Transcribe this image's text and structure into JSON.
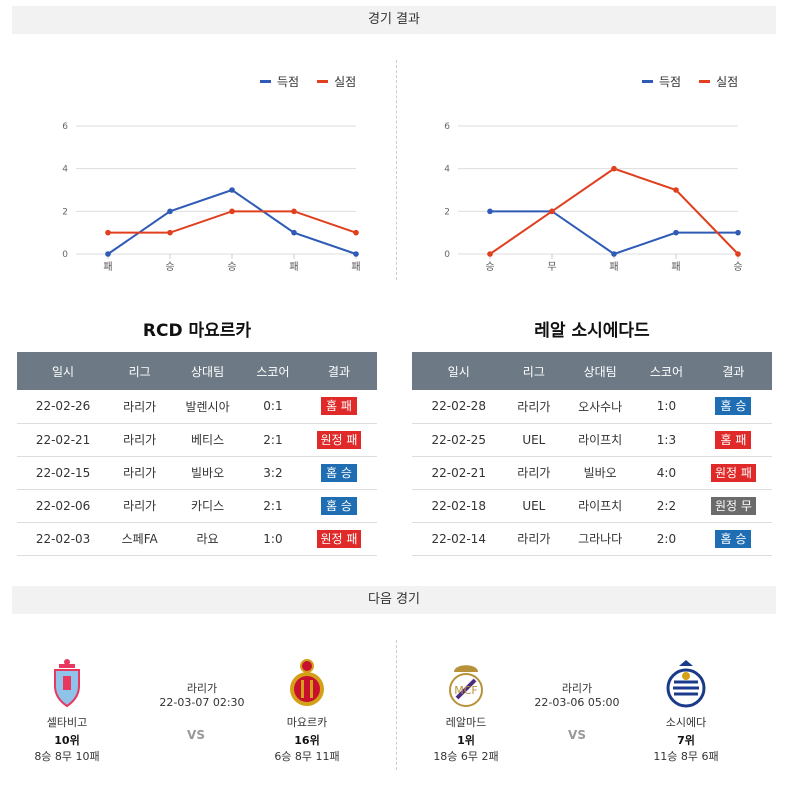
{
  "colors": {
    "scored": "#2f5bb7",
    "conceded": "#e0401f",
    "home_win": "#1f6db3",
    "loss": "#e02a2a",
    "draw": "#6b6b6b",
    "header": "#6d7a86"
  },
  "sections": {
    "results_title": "경기 결과",
    "next_title": "다음 경기"
  },
  "chart_data": [
    {
      "type": "line",
      "categories": [
        "패",
        "승",
        "승",
        "패",
        "패"
      ],
      "series": [
        {
          "name": "득점",
          "values": [
            0,
            2,
            3,
            1,
            0
          ]
        },
        {
          "name": "실점",
          "values": [
            1,
            1,
            2,
            2,
            1
          ]
        }
      ],
      "yticks": [
        "0",
        "2",
        "4",
        "6"
      ],
      "ylim": [
        0,
        6
      ],
      "grid": true,
      "legend": "top-right"
    },
    {
      "type": "line",
      "categories": [
        "승",
        "무",
        "패",
        "패",
        "승"
      ],
      "series": [
        {
          "name": "득점",
          "values": [
            2,
            2,
            0,
            1,
            1
          ]
        },
        {
          "name": "실점",
          "values": [
            0,
            2,
            4,
            3,
            0
          ]
        }
      ],
      "yticks": [
        "0",
        "2",
        "4",
        "6"
      ],
      "ylim": [
        0,
        6
      ],
      "grid": true,
      "legend": "top-right"
    }
  ],
  "left_team": {
    "title": "RCD 마요르카",
    "headers": [
      "일시",
      "리그",
      "상대팀",
      "스코어",
      "결과"
    ],
    "rows": [
      {
        "date": "22-02-26",
        "league": "라리가",
        "opponent": "발렌시아",
        "score": "0:1",
        "result": "홈 패",
        "kind": "loss"
      },
      {
        "date": "22-02-21",
        "league": "라리가",
        "opponent": "베티스",
        "score": "2:1",
        "result": "원정 패",
        "kind": "loss"
      },
      {
        "date": "22-02-15",
        "league": "라리가",
        "opponent": "빌바오",
        "score": "3:2",
        "result": "홈 승",
        "kind": "win"
      },
      {
        "date": "22-02-06",
        "league": "라리가",
        "opponent": "카디스",
        "score": "2:1",
        "result": "홈 승",
        "kind": "win"
      },
      {
        "date": "22-02-03",
        "league": "스페FA",
        "opponent": "라요",
        "score": "1:0",
        "result": "원정 패",
        "kind": "loss"
      }
    ]
  },
  "right_team": {
    "title": "레알 소시에다드",
    "headers": [
      "일시",
      "리그",
      "상대팀",
      "스코어",
      "결과"
    ],
    "rows": [
      {
        "date": "22-02-28",
        "league": "라리가",
        "opponent": "오사수나",
        "score": "1:0",
        "result": "홈 승",
        "kind": "win"
      },
      {
        "date": "22-02-25",
        "league": "UEL",
        "opponent": "라이프치",
        "score": "1:3",
        "result": "홈 패",
        "kind": "loss"
      },
      {
        "date": "22-02-21",
        "league": "라리가",
        "opponent": "빌바오",
        "score": "4:0",
        "result": "원정 패",
        "kind": "loss"
      },
      {
        "date": "22-02-18",
        "league": "UEL",
        "opponent": "라이프치",
        "score": "2:2",
        "result": "원정 무",
        "kind": "draw"
      },
      {
        "date": "22-02-14",
        "league": "라리가",
        "opponent": "그라나다",
        "score": "2:0",
        "result": "홈 승",
        "kind": "win"
      }
    ]
  },
  "next_matches": [
    {
      "league": "라리가",
      "datetime": "22-03-07 02:30",
      "vs": "VS",
      "home": {
        "name": "셀타비고",
        "rank": "10위",
        "record": "8승 8무 10패",
        "logo": "celta-logo"
      },
      "away": {
        "name": "마요르카",
        "rank": "16위",
        "record": "6승 8무 11패",
        "logo": "mallorca-logo"
      }
    },
    {
      "league": "라리가",
      "datetime": "22-03-06 05:00",
      "vs": "VS",
      "home": {
        "name": "레알마드",
        "rank": "1위",
        "record": "18승 6무 2패",
        "logo": "real-madrid-logo"
      },
      "away": {
        "name": "소시에다",
        "rank": "7위",
        "record": "11승 8무 6패",
        "logo": "real-sociedad-logo"
      }
    }
  ]
}
